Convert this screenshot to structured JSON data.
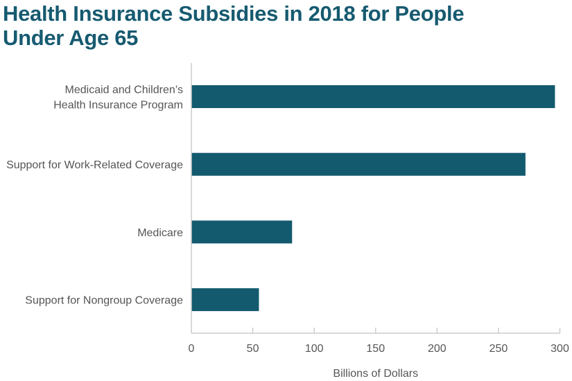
{
  "chart_data": {
    "type": "bar",
    "orientation": "horizontal",
    "title_lines": [
      "Health Insurance Subsidies in 2018 for People",
      "Under Age 65"
    ],
    "categories": [
      [
        "Medicaid and Children’s",
        "Health Insurance Program"
      ],
      [
        "Support for Work-Related Coverage"
      ],
      [
        "Medicare"
      ],
      [
        "Support for Nongroup Coverage"
      ]
    ],
    "values": [
      296,
      272,
      82,
      55
    ],
    "xlabel": "Billions of Dollars",
    "ylabel": "",
    "xlim": [
      0,
      300
    ],
    "xticks": [
      0,
      50,
      100,
      150,
      200,
      250,
      300
    ],
    "grid": false,
    "legend": "none",
    "bar_color": "#135a6e",
    "axis_color": "#cccccc",
    "text_color": "#555555",
    "title_color": "#165a70"
  }
}
